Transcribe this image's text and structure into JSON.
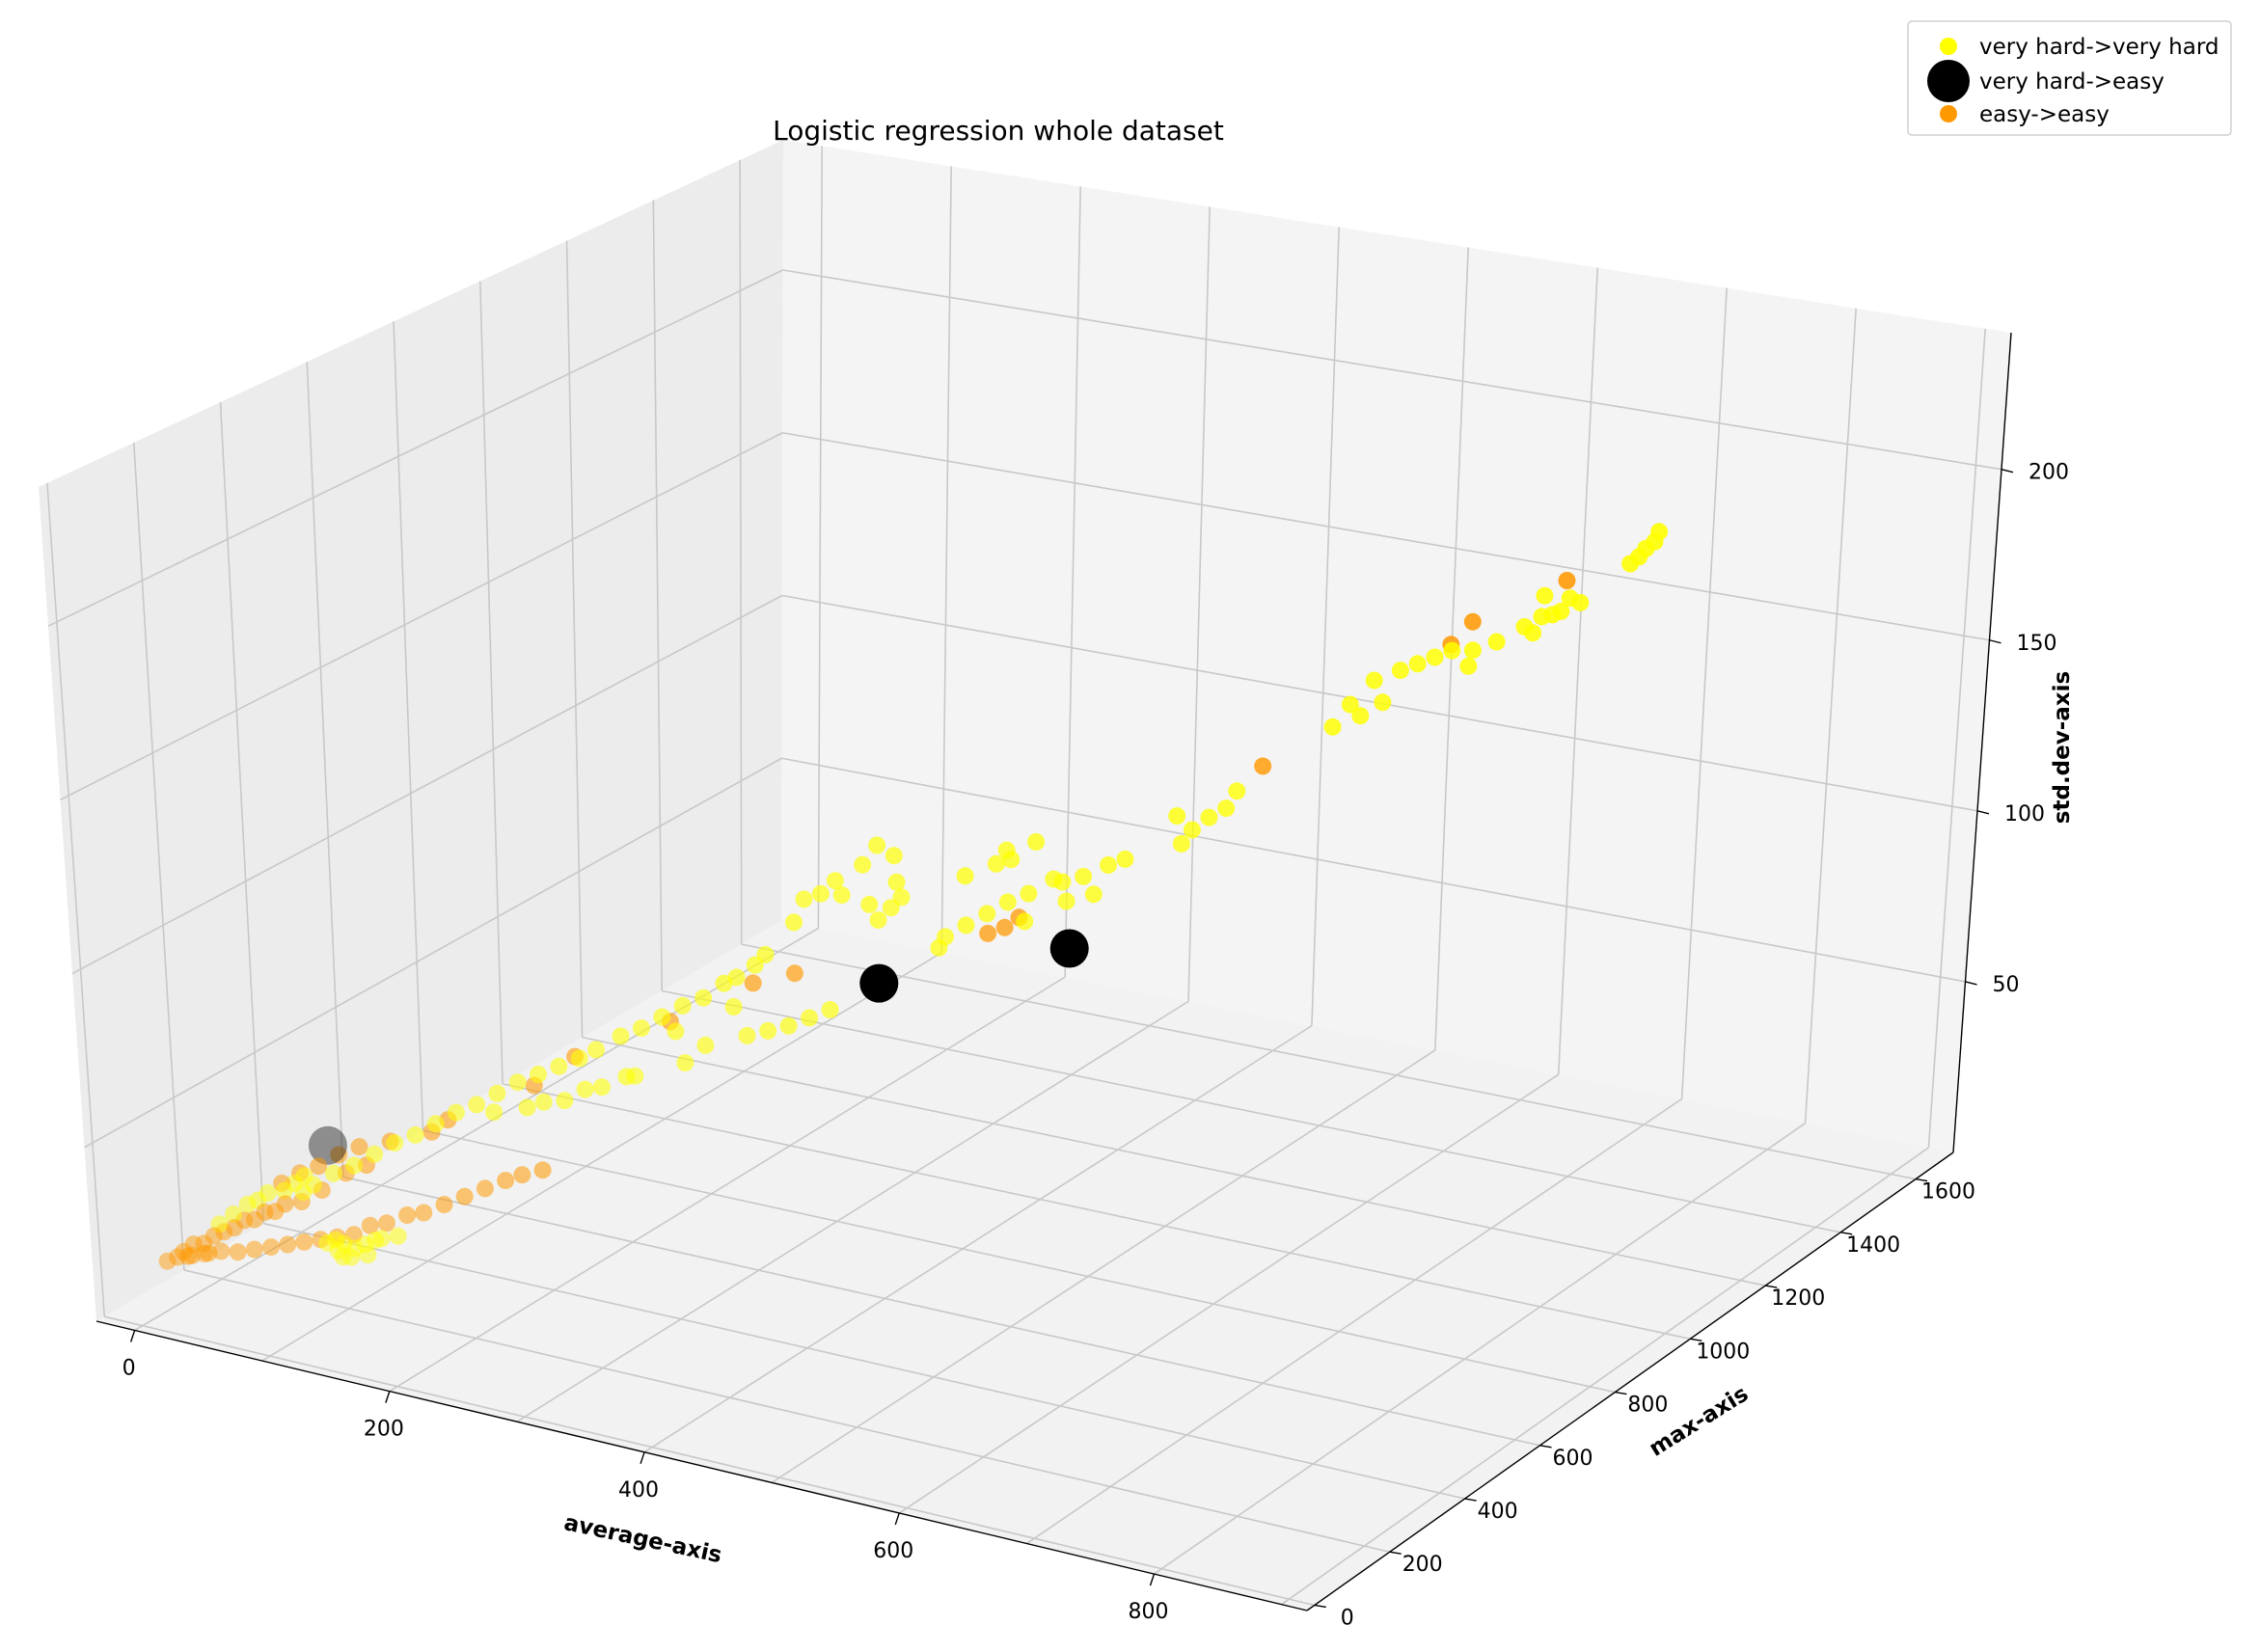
{
  "chart_data": {
    "type": "scatter",
    "title": "Logistic regression whole dataset",
    "xlabel": "average-axis",
    "ylabel": "max-axis",
    "zlabel": "std.dev-axis",
    "x_ticks": [
      0,
      200,
      400,
      600,
      800
    ],
    "y_ticks": [
      0,
      200,
      400,
      600,
      800,
      1000,
      1200,
      1400,
      1600
    ],
    "z_ticks": [
      50,
      100,
      150,
      200
    ],
    "legend_position": "top-right",
    "grid": true,
    "series": [
      {
        "name": "very hard->very hard",
        "color": "#ffff00",
        "marker": "circle",
        "size": "small",
        "points": [
          [
            760,
            1350,
            205
          ],
          [
            755,
            1345,
            203
          ],
          [
            760,
            1360,
            207
          ],
          [
            745,
            1340,
            198
          ],
          [
            750,
            1345,
            200
          ],
          [
            720,
            1300,
            188
          ],
          [
            705,
            1280,
            185
          ],
          [
            690,
            1260,
            182
          ],
          [
            700,
            1270,
            185
          ],
          [
            710,
            1285,
            186
          ],
          [
            715,
            1290,
            190
          ],
          [
            700,
            1275,
            191
          ],
          [
            675,
            1240,
            178
          ],
          [
            660,
            1230,
            175
          ],
          [
            650,
            1210,
            176
          ],
          [
            640,
            1200,
            174
          ],
          [
            630,
            1190,
            172
          ],
          [
            620,
            1180,
            170
          ],
          [
            660,
            1220,
            171
          ],
          [
            695,
            1265,
            180
          ],
          [
            600,
            1180,
            165
          ],
          [
            610,
            1170,
            160
          ],
          [
            585,
            1170,
            157
          ],
          [
            575,
            1160,
            150
          ],
          [
            590,
            1180,
            153
          ],
          [
            545,
            1020,
            140
          ],
          [
            540,
            1010,
            135
          ],
          [
            530,
            1000,
            132
          ],
          [
            520,
            990,
            128
          ],
          [
            515,
            980,
            124
          ],
          [
            505,
            1000,
            130
          ],
          [
            490,
            920,
            122
          ],
          [
            480,
            910,
            120
          ],
          [
            470,
            880,
            118
          ],
          [
            460,
            860,
            117
          ],
          [
            450,
            870,
            116
          ],
          [
            440,
            840,
            113
          ],
          [
            430,
            820,
            111
          ],
          [
            420,
            800,
            108
          ],
          [
            410,
            780,
            105
          ],
          [
            400,
            760,
            102
          ],
          [
            395,
            760,
            98
          ],
          [
            440,
            830,
            105
          ],
          [
            460,
            870,
            110
          ],
          [
            475,
            890,
            112
          ],
          [
            420,
            860,
            120
          ],
          [
            415,
            865,
            122
          ],
          [
            410,
            855,
            118
          ],
          [
            430,
            890,
            124
          ],
          [
            400,
            810,
            117
          ],
          [
            385,
            700,
            118
          ],
          [
            380,
            690,
            115
          ],
          [
            370,
            690,
            110
          ],
          [
            360,
            700,
            113
          ],
          [
            375,
            720,
            120
          ],
          [
            370,
            730,
            127
          ],
          [
            360,
            720,
            130
          ],
          [
            355,
            700,
            125
          ],
          [
            340,
            680,
            120
          ],
          [
            325,
            650,
            115
          ],
          [
            335,
            660,
            117
          ],
          [
            345,
            680,
            116
          ],
          [
            320,
            640,
            108
          ],
          [
            310,
            600,
            100
          ],
          [
            305,
            590,
            97
          ],
          [
            300,
            560,
            95
          ],
          [
            290,
            560,
            92
          ],
          [
            280,
            540,
            88
          ],
          [
            270,
            520,
            86
          ],
          [
            260,
            500,
            83
          ],
          [
            250,
            480,
            80
          ],
          [
            240,
            460,
            78
          ],
          [
            230,
            430,
            75
          ],
          [
            220,
            420,
            72
          ],
          [
            210,
            400,
            70
          ],
          [
            200,
            380,
            68
          ],
          [
            190,
            360,
            66
          ],
          [
            180,
            340,
            63
          ],
          [
            170,
            320,
            60
          ],
          [
            160,
            300,
            58
          ],
          [
            150,
            280,
            55
          ],
          [
            140,
            260,
            52
          ],
          [
            130,
            240,
            50
          ],
          [
            120,
            220,
            47
          ],
          [
            110,
            200,
            44
          ],
          [
            100,
            180,
            42
          ],
          [
            90,
            160,
            39
          ],
          [
            85,
            150,
            37
          ],
          [
            290,
            460,
            75
          ],
          [
            300,
            480,
            80
          ],
          [
            280,
            470,
            83
          ],
          [
            260,
            430,
            70
          ],
          [
            250,
            440,
            68
          ],
          [
            240,
            410,
            66
          ],
          [
            230,
            400,
            65
          ],
          [
            220,
            380,
            62
          ],
          [
            210,
            360,
            62
          ],
          [
            200,
            350,
            60
          ],
          [
            180,
            330,
            58
          ],
          [
            350,
            580,
            86
          ],
          [
            360,
            600,
            88
          ],
          [
            340,
            560,
            84
          ],
          [
            320,
            520,
            82
          ],
          [
            330,
            540,
            83
          ],
          [
            310,
            520,
            90
          ],
          [
            45,
            100,
            30
          ],
          [
            40,
            80,
            28
          ],
          [
            50,
            120,
            32
          ],
          [
            55,
            130,
            33
          ],
          [
            60,
            140,
            35
          ],
          [
            70,
            150,
            36
          ],
          [
            75,
            160,
            38
          ],
          [
            80,
            170,
            40
          ],
          [
            120,
            120,
            25
          ],
          [
            130,
            130,
            26
          ],
          [
            140,
            150,
            28
          ],
          [
            125,
            115,
            24
          ],
          [
            135,
            140,
            27
          ],
          [
            145,
            150,
            29
          ],
          [
            155,
            160,
            30
          ],
          [
            110,
            125,
            26
          ],
          [
            115,
            130,
            27
          ],
          [
            120,
            135,
            26
          ],
          [
            130,
            120,
            24
          ],
          [
            140,
            130,
            25
          ]
        ]
      },
      {
        "name": "very hard->easy",
        "color": "#000000",
        "marker": "circle",
        "size": "large",
        "points": [
          [
            475,
            830,
            100
          ],
          [
            370,
            690,
            90
          ],
          [
            90,
            200,
            48
          ]
        ]
      },
      {
        "name": "easy->easy",
        "color": "#ff9900",
        "marker": "circle",
        "size": "small",
        "points": [
          [
            700,
            1330,
            190
          ],
          [
            650,
            1260,
            180
          ],
          [
            640,
            1240,
            174
          ],
          [
            540,
            1100,
            140
          ],
          [
            420,
            880,
            100
          ],
          [
            415,
            860,
            98
          ],
          [
            405,
            850,
            96
          ],
          [
            320,
            640,
            92
          ],
          [
            300,
            600,
            90
          ],
          [
            260,
            520,
            80
          ],
          [
            210,
            440,
            70
          ],
          [
            190,
            400,
            62
          ],
          [
            150,
            310,
            54
          ],
          [
            140,
            300,
            50
          ],
          [
            120,
            260,
            48
          ],
          [
            110,
            230,
            42
          ],
          [
            100,
            210,
            40
          ],
          [
            90,
            180,
            36
          ],
          [
            80,
            160,
            33
          ],
          [
            70,
            150,
            32
          ],
          [
            65,
            140,
            30
          ],
          [
            60,
            130,
            30
          ],
          [
            55,
            120,
            28
          ],
          [
            50,
            110,
            28
          ],
          [
            45,
            100,
            26
          ],
          [
            40,
            90,
            25
          ],
          [
            35,
            80,
            24
          ],
          [
            30,
            70,
            22
          ],
          [
            25,
            60,
            22
          ],
          [
            20,
            50,
            20
          ],
          [
            95,
            210,
            45
          ],
          [
            85,
            190,
            42
          ],
          [
            75,
            175,
            40
          ],
          [
            65,
            160,
            37
          ],
          [
            105,
            230,
            47
          ],
          [
            110,
            150,
            26
          ],
          [
            120,
            160,
            27
          ],
          [
            100,
            140,
            25
          ],
          [
            90,
            130,
            24
          ],
          [
            80,
            120,
            23
          ],
          [
            70,
            110,
            22
          ],
          [
            60,
            100,
            21
          ],
          [
            50,
            90,
            20
          ],
          [
            40,
            80,
            20
          ],
          [
            30,
            70,
            19
          ],
          [
            20,
            60,
            18
          ],
          [
            15,
            50,
            18
          ],
          [
            10,
            40,
            17
          ],
          [
            25,
            55,
            19
          ],
          [
            35,
            65,
            20
          ],
          [
            130,
            170,
            30
          ],
          [
            140,
            180,
            31
          ],
          [
            150,
            200,
            33
          ],
          [
            160,
            210,
            34
          ],
          [
            170,
            230,
            36
          ],
          [
            180,
            250,
            38
          ],
          [
            190,
            270,
            40
          ],
          [
            200,
            290,
            42
          ],
          [
            210,
            300,
            44
          ],
          [
            220,
            320,
            45
          ]
        ]
      }
    ]
  }
}
